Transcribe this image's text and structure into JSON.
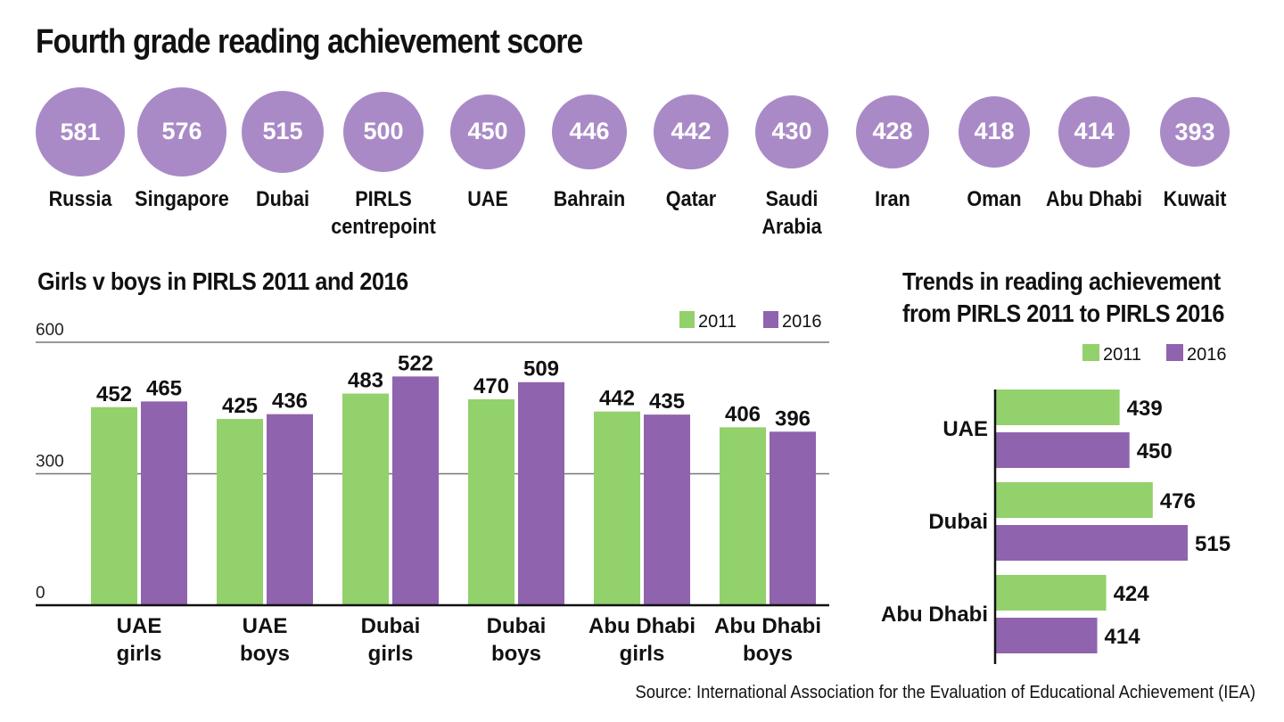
{
  "title": "Fourth grade reading achievement score",
  "source": "Source: International Association for the Evaluation of Educational Achievement (IEA)",
  "colors": {
    "purple": "#8f63ae",
    "bubble": "#a98ac7",
    "green": "#92d16b"
  },
  "chart_data": [
    {
      "type": "bubble-row",
      "title": "Fourth grade reading achievement score",
      "categories": [
        "Russia",
        "Singapore",
        "Dubai",
        "PIRLS\ncentrepoint",
        "UAE",
        "Bahrain",
        "Qatar",
        "Saudi\nArabia",
        "Iran",
        "Oman",
        "Abu Dhabi",
        "Kuwait"
      ],
      "values": [
        581,
        576,
        515,
        500,
        450,
        446,
        442,
        430,
        428,
        418,
        414,
        393
      ]
    },
    {
      "type": "bar",
      "title": "Girls v boys in PIRLS 2011 and 2016",
      "categories": [
        "UAE\ngirls",
        "UAE\nboys",
        "Dubai\ngirls",
        "Dubai\nboys",
        "Abu Dhabi\ngirls",
        "Abu Dhabi\nboys"
      ],
      "series": [
        {
          "name": "2011",
          "values": [
            452,
            425,
            483,
            470,
            442,
            406
          ]
        },
        {
          "name": "2016",
          "values": [
            465,
            436,
            522,
            509,
            435,
            396
          ]
        }
      ],
      "yticks": [
        "600",
        "300",
        "0"
      ],
      "ylim": [
        0,
        600
      ],
      "legend": "top-right"
    },
    {
      "type": "horizontal-bar",
      "title": "Trends in reading achievement\nfrom PIRLS 2011 to PIRLS 2016",
      "categories": [
        "UAE",
        "Dubai",
        "Abu Dhabi"
      ],
      "series": [
        {
          "name": "2011",
          "values": [
            439,
            476,
            424
          ]
        },
        {
          "name": "2016",
          "values": [
            450,
            515,
            414
          ]
        }
      ],
      "legend": "top"
    }
  ]
}
